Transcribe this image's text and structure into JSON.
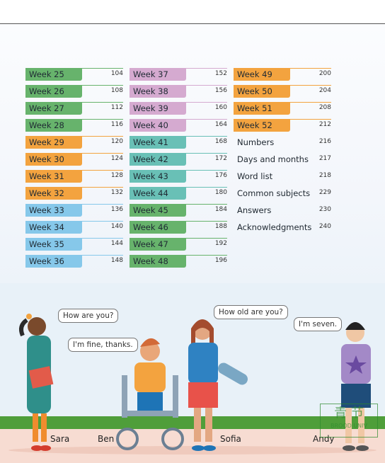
{
  "colors": {
    "green": "#67b36c",
    "orange": "#f3a33f",
    "blue": "#86c8ea",
    "purple": "#d5aad0",
    "teal": "#69c0b6"
  },
  "contents": {
    "col1": [
      {
        "label": "Week 25",
        "page": "104",
        "color": "green"
      },
      {
        "label": "Week 26",
        "page": "108",
        "color": "green"
      },
      {
        "label": "Week 27",
        "page": "112",
        "color": "green"
      },
      {
        "label": "Week 28",
        "page": "116",
        "color": "green"
      },
      {
        "label": "Week 29",
        "page": "120",
        "color": "orange"
      },
      {
        "label": "Week 30",
        "page": "124",
        "color": "orange"
      },
      {
        "label": "Week 31",
        "page": "128",
        "color": "orange"
      },
      {
        "label": "Week 32",
        "page": "132",
        "color": "orange"
      },
      {
        "label": "Week 33",
        "page": "136",
        "color": "blue"
      },
      {
        "label": "Week 34",
        "page": "140",
        "color": "blue"
      },
      {
        "label": "Week 35",
        "page": "144",
        "color": "blue"
      },
      {
        "label": "Week 36",
        "page": "148",
        "color": "blue"
      }
    ],
    "col2": [
      {
        "label": "Week 37",
        "page": "152",
        "color": "purple"
      },
      {
        "label": "Week 38",
        "page": "156",
        "color": "purple"
      },
      {
        "label": "Week 39",
        "page": "160",
        "color": "purple"
      },
      {
        "label": "Week 40",
        "page": "164",
        "color": "purple"
      },
      {
        "label": "Week 41",
        "page": "168",
        "color": "teal"
      },
      {
        "label": "Week 42",
        "page": "172",
        "color": "teal"
      },
      {
        "label": "Week 43",
        "page": "176",
        "color": "teal"
      },
      {
        "label": "Week 44",
        "page": "180",
        "color": "teal"
      },
      {
        "label": "Week 45",
        "page": "184",
        "color": "green"
      },
      {
        "label": "Week 46",
        "page": "188",
        "color": "green"
      },
      {
        "label": "Week 47",
        "page": "192",
        "color": "green"
      },
      {
        "label": "Week 48",
        "page": "196",
        "color": "green"
      }
    ],
    "col3": [
      {
        "label": "Week 49",
        "page": "200",
        "color": "orange"
      },
      {
        "label": "Week 50",
        "page": "204",
        "color": "orange"
      },
      {
        "label": "Week 51",
        "page": "208",
        "color": "orange"
      },
      {
        "label": "Week 52",
        "page": "212",
        "color": "orange"
      },
      {
        "label": "Numbers",
        "page": "216",
        "color": ""
      },
      {
        "label": "Days and months",
        "page": "217",
        "color": ""
      },
      {
        "label": "Word list",
        "page": "218",
        "color": ""
      },
      {
        "label": "Common subjects",
        "page": "229",
        "color": ""
      },
      {
        "label": "Answers",
        "page": "230",
        "color": ""
      },
      {
        "label": "Acknowledgments",
        "page": "240",
        "color": ""
      }
    ]
  },
  "scene": {
    "bubbles": {
      "b1": "How are you?",
      "b2": "I'm fine, thanks.",
      "b3": "How old are you?",
      "b4": "I'm seven."
    },
    "names": {
      "sara": "Sara",
      "ben": "Ben",
      "sofia": "Sofia",
      "andy": "Andy"
    }
  },
  "watermark": {
    "line1": "青 节 ",
    "line2": "BROOD UNIV"
  }
}
